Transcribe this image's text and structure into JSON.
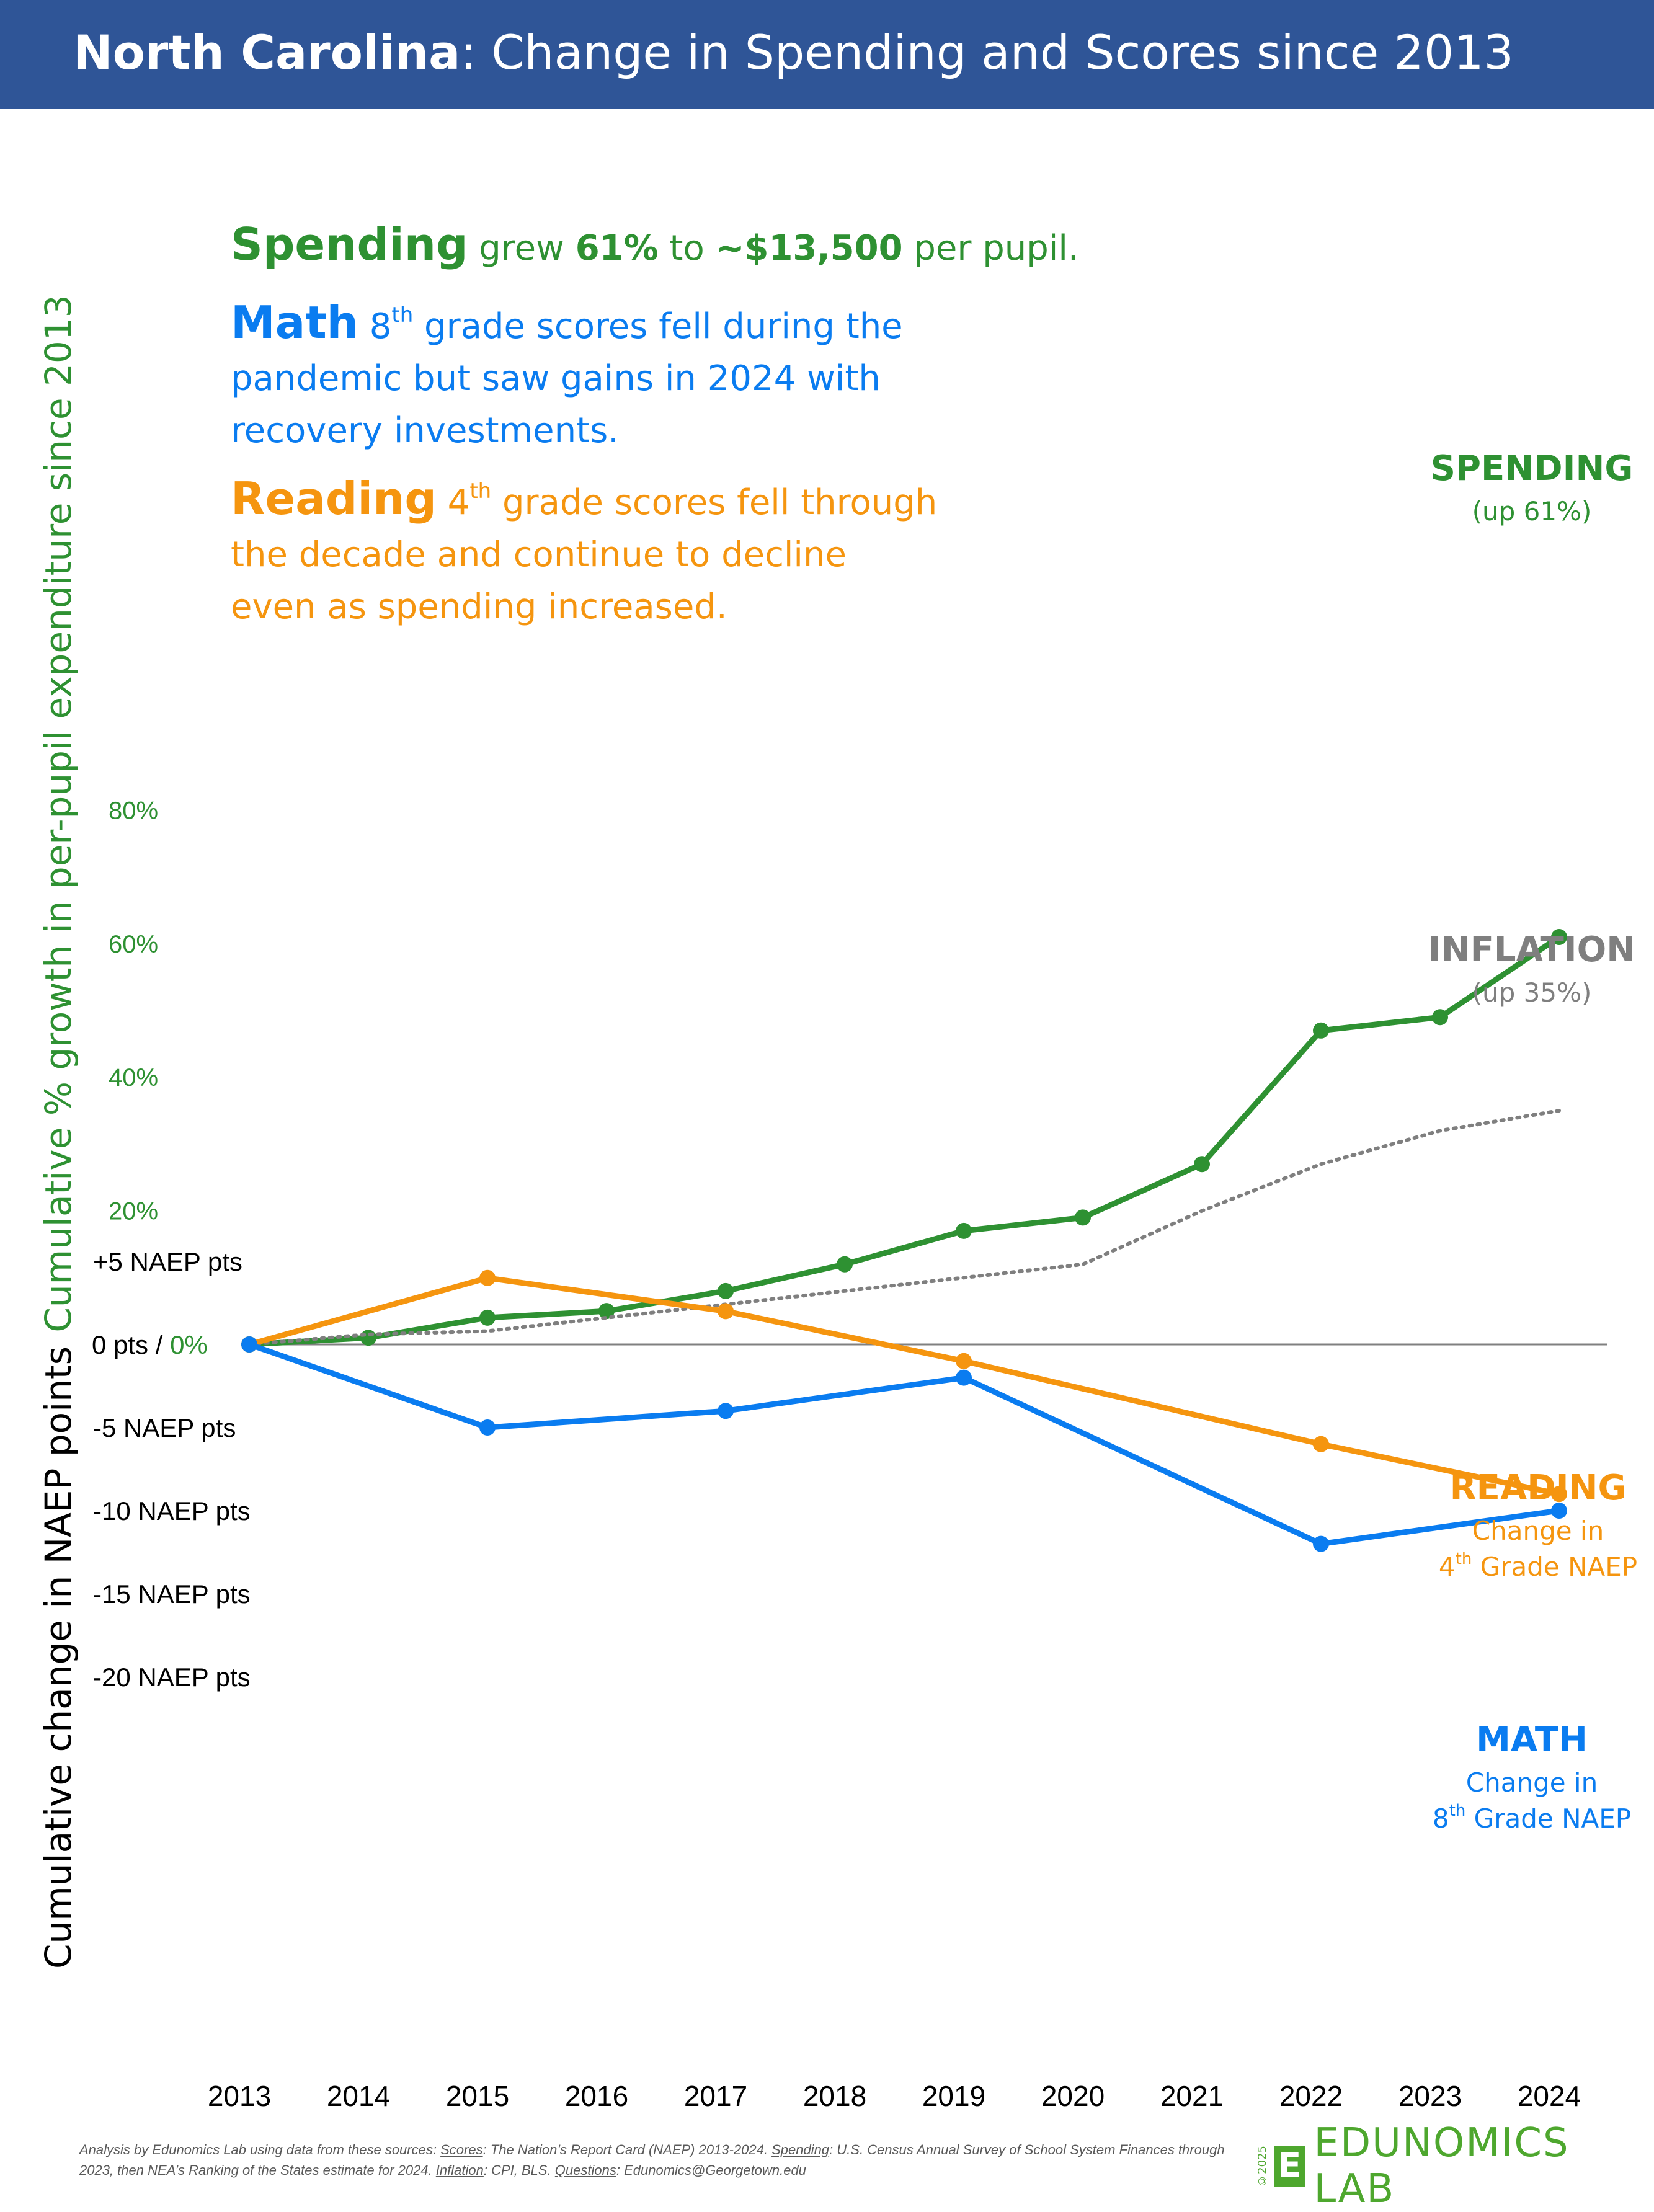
{
  "header": {
    "title_state": "North Carolina",
    "title_rest": ": Change in Spending and Scores since 2013"
  },
  "colors": {
    "banner": "#2f5597",
    "spending": "#2e9132",
    "math": "#0a7cf0",
    "reading": "#f5950f",
    "inflation": "#7f7f7f",
    "brand": "#4ea72e"
  },
  "annotations": {
    "spending": {
      "lead": "Spending",
      "t1": " grew ",
      "pct": "61%",
      "t2": " to ",
      "amount": "~$13,500",
      "t3": " per pupil."
    },
    "math": {
      "lead": "Math",
      "grade": " 8",
      "sup": "th",
      "t1": " grade scores fell during the",
      "line2": "pandemic but saw gains in 2024 with",
      "line3": "recovery investments."
    },
    "reading": {
      "lead": "Reading",
      "grade": " 4",
      "sup": "th",
      "t1": " grade scores fell through",
      "line2": "the decade and continue to decline",
      "line3": "even as spending increased."
    }
  },
  "series_labels": {
    "spending": {
      "title": "SPENDING",
      "sub": "(up 61%)"
    },
    "inflation": {
      "title": "INFLATION",
      "sub": "(up 35%)"
    },
    "reading": {
      "title": "READING",
      "line1": "Change in",
      "line2_pre": "4",
      "line2_sup": "th",
      "line2_post": " Grade NAEP"
    },
    "math": {
      "title": "MATH",
      "line1": "Change in",
      "line2_pre": "8",
      "line2_sup": "th",
      "line2_post": " Grade NAEP"
    }
  },
  "footnote": {
    "p1": "Analysis by Edunomics Lab using data from these sources: ",
    "scores_label": "Scores",
    "scores_text": ": The Nation’s Report Card (NAEP) 2013-2024. ",
    "spending_label": "Spending",
    "spending_text": ": U.S. Census Annual Survey of School System Finances through 2023, then NEA’s Ranking of the States estimate for 2024. ",
    "inflation_label": "Inflation",
    "inflation_text": ": CPI, BLS. ",
    "questions_label": "Questions",
    "questions_text": ": Edunomics@Georgetown.edu"
  },
  "logo": {
    "copyright": "©2025",
    "mark": "E",
    "text": "EDUNOMICS LAB"
  },
  "chart_data": {
    "type": "line",
    "x": [
      2013,
      2014,
      2015,
      2016,
      2017,
      2018,
      2019,
      2020,
      2021,
      2022,
      2023,
      2024
    ],
    "x_tick_labels": [
      "2013",
      "2014",
      "2015",
      "2016",
      "2017",
      "2018",
      "2019",
      "2020",
      "2021",
      "2022",
      "2023",
      "2024"
    ],
    "y_left": {
      "label": "Cumulative % growth in per-pupil expenditure since 2013",
      "ticks": [
        20,
        40,
        60,
        80
      ],
      "tick_labels": [
        "20%",
        "40%",
        "60%",
        "80%"
      ],
      "range": [
        0,
        80
      ]
    },
    "y_right_points": {
      "label": "Cumulative change in NAEP points",
      "ticks": [
        5,
        -5,
        -10,
        -15,
        -20
      ],
      "tick_labels": [
        "+5 NAEP pts",
        "-5 NAEP pts",
        "-10 NAEP pts",
        "-15 NAEP pts",
        "-20 NAEP pts"
      ],
      "zero_label_pts": "0 pts",
      "zero_label_sep": " / ",
      "zero_label_pct": "0%"
    },
    "series": [
      {
        "key": "spending",
        "axis": "percent",
        "markers": true,
        "dashed": false,
        "values": [
          0,
          1,
          4,
          5,
          8,
          12,
          17,
          19,
          27,
          47,
          49,
          61
        ]
      },
      {
        "key": "inflation",
        "axis": "percent",
        "markers": false,
        "dashed": true,
        "values": [
          0,
          1.5,
          2,
          4,
          6,
          8,
          10,
          12,
          20,
          27,
          32,
          35
        ]
      },
      {
        "key": "reading",
        "axis": "points",
        "markers": true,
        "dashed": false,
        "x": [
          2013,
          2015,
          2017,
          2019,
          2022,
          2024
        ],
        "values": [
          0,
          4,
          2,
          -1,
          -6,
          -9
        ]
      },
      {
        "key": "math",
        "axis": "points",
        "markers": true,
        "dashed": false,
        "x": [
          2013,
          2015,
          2017,
          2019,
          2022,
          2024
        ],
        "values": [
          0,
          -5,
          -4,
          -2,
          -12,
          -10
        ]
      }
    ],
    "zero_line": true,
    "grid": false
  }
}
